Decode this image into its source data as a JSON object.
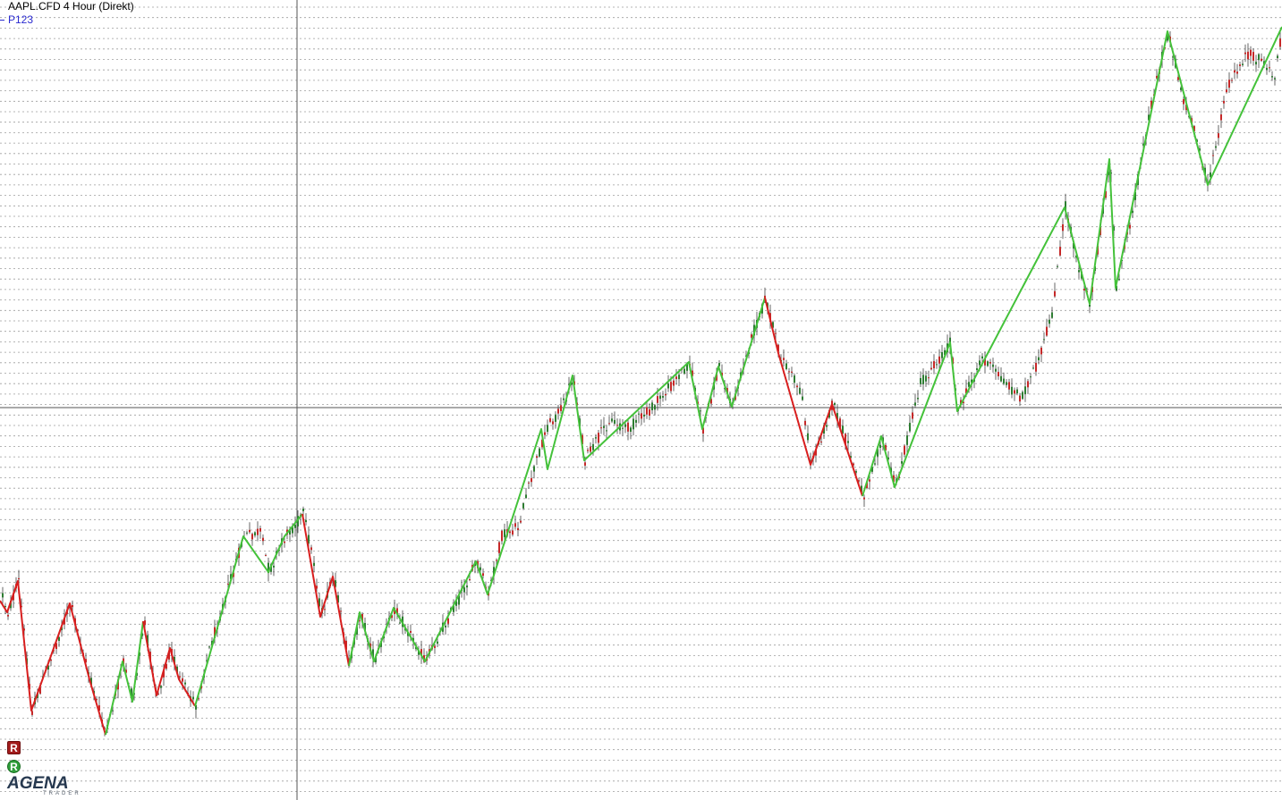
{
  "chart": {
    "title": "AAPL.CFD 4 Hour (Direkt)",
    "indicator_name": "P123",
    "colors": {
      "background": "#ffffff",
      "grid": "#9e9e9e",
      "crosshair": "#555555",
      "candle_up": "#2e7d32",
      "candle_down": "#c62828",
      "wick": "#404040",
      "zigzag_up": "#44c23a",
      "zigzag_down": "#d81e1e",
      "indicator_label": "#2a2ad0"
    }
  },
  "indicators": {
    "red_badge": {
      "glyph": "R",
      "color": "#a21c1c"
    },
    "green_badge": {
      "glyph": "R",
      "color": "#2f9e3a"
    }
  },
  "brand": {
    "logo_text": "AGENA",
    "logo_subtext": "TRADER"
  }
}
